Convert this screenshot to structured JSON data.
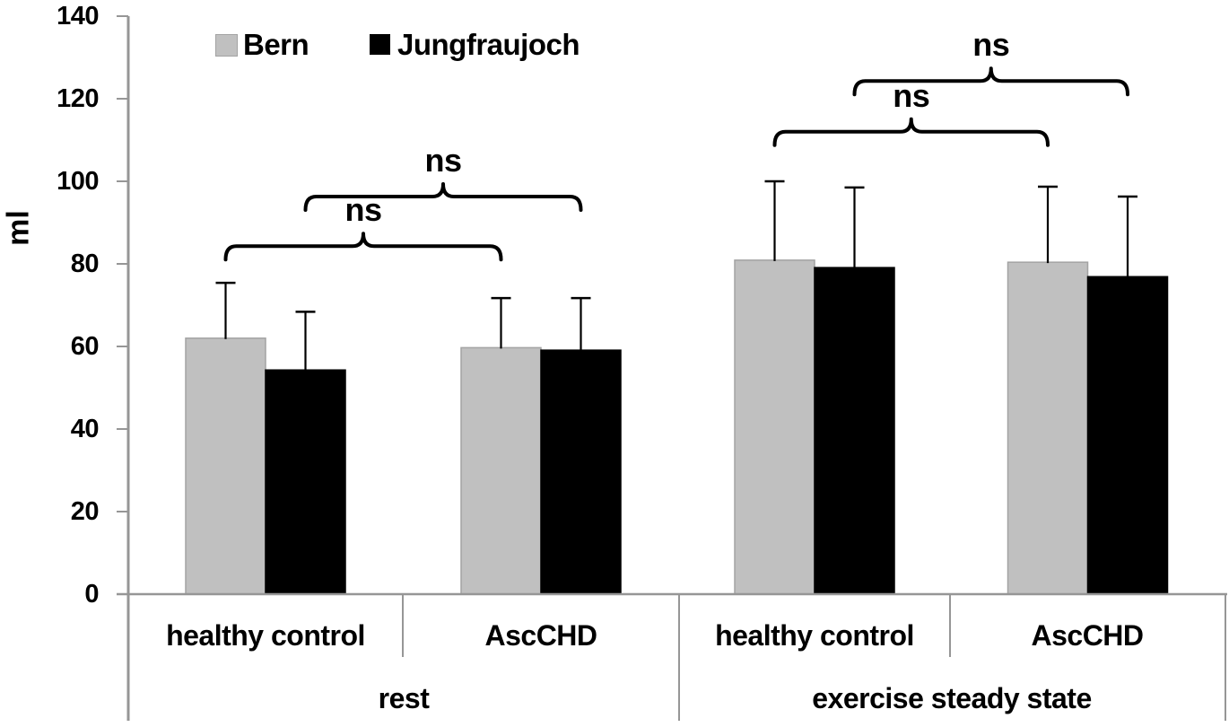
{
  "chart_data": {
    "type": "bar",
    "title": "",
    "xlabel": "",
    "ylabel": "ml",
    "ylim": [
      0,
      140
    ],
    "yticks": [
      0,
      20,
      40,
      60,
      80,
      100,
      120,
      140
    ],
    "grid": false,
    "group_labels": [
      "rest",
      "exercise steady state"
    ],
    "categories": [
      "healthy control",
      "AscCHD",
      "healthy control",
      "AscCHD"
    ],
    "series": [
      {
        "name": "Bern",
        "color": "#c0c0c0",
        "border_color": "#a3a3a3",
        "values": [
          62.0,
          59.7,
          80.9,
          80.4
        ],
        "errors_plus": [
          13.4,
          12.0,
          19.1,
          18.3
        ]
      },
      {
        "name": "Jungfraujoch",
        "color": "#000000",
        "border_color": "#000000",
        "values": [
          54.3,
          59.1,
          79.1,
          76.9
        ],
        "errors_plus": [
          14.1,
          12.6,
          19.4,
          19.4
        ]
      }
    ],
    "annotations": [
      {
        "label": "ns",
        "series": "Bern",
        "from_category": 0,
        "to_category": 1,
        "y_ml": 84.3
      },
      {
        "label": "ns",
        "series": "Jungfraujoch",
        "from_category": 0,
        "to_category": 1,
        "y_ml": 96.3
      },
      {
        "label": "ns",
        "series": "Bern",
        "from_category": 2,
        "to_category": 3,
        "y_ml": 112.0
      },
      {
        "label": "ns",
        "series": "Jungfraujoch",
        "from_category": 2,
        "to_category": 3,
        "y_ml": 124.3
      }
    ],
    "legend": {
      "position": "top-left",
      "entries": [
        "Bern",
        "Jungfraujoch"
      ]
    },
    "axis_color": "#969696",
    "error_bar_color": "#000000",
    "annotation_color": "#000000"
  }
}
